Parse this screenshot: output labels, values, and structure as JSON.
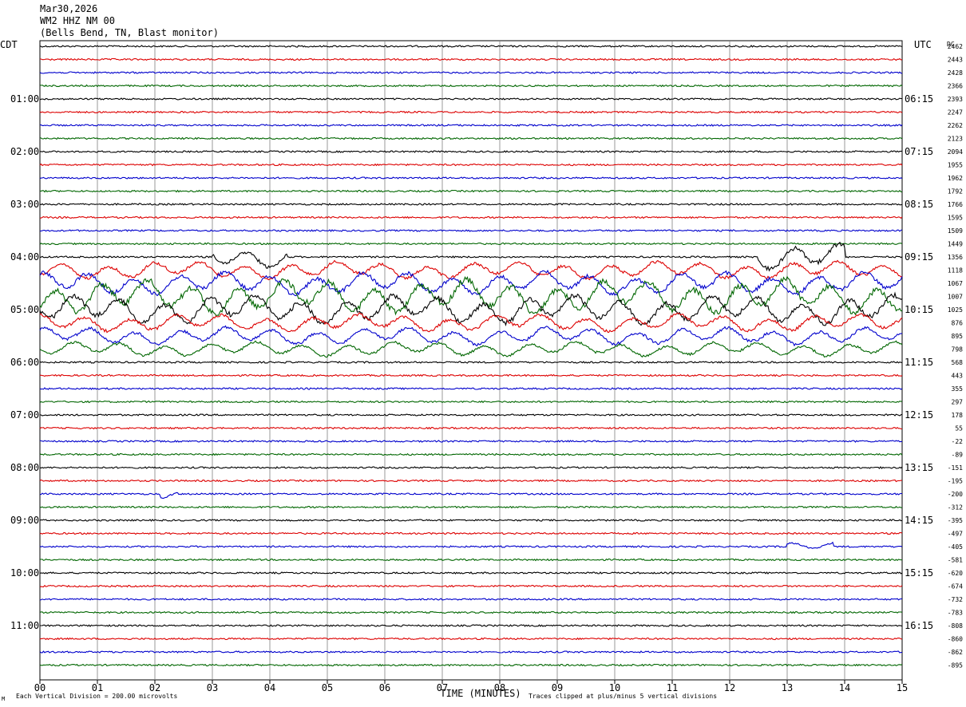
{
  "header": {
    "date": "Mar30,2026",
    "station": "WM2 HHZ NM 00",
    "location": "(Bells Bend, TN, Blast monitor)"
  },
  "axis": {
    "left_tz": "CDT",
    "right_tz": "UTC",
    "dc_label": "DC",
    "xlabel": "TIME (MINUTES)",
    "x_ticks": [
      "00",
      "01",
      "02",
      "03",
      "04",
      "05",
      "06",
      "07",
      "08",
      "09",
      "10",
      "11",
      "12",
      "13",
      "14",
      "15"
    ],
    "left_hours": [
      "01:00",
      "02:00",
      "03:00",
      "04:00",
      "05:00",
      "06:00",
      "07:00",
      "08:00",
      "09:00",
      "10:00",
      "11:00"
    ],
    "right_hours": [
      "06:15",
      "07:15",
      "08:15",
      "09:15",
      "10:15",
      "11:15",
      "12:15",
      "13:15",
      "14:15",
      "15:15",
      "16:15"
    ]
  },
  "footer": {
    "scale": "Each Vertical Division =  200.00 microvolts",
    "clip": "Traces clipped at plus/minus 5 vertical divisions",
    "corner_mark": "M"
  },
  "colors": [
    "#000000",
    "#dd0000",
    "#0000cc",
    "#006600"
  ],
  "chart_data": {
    "type": "line",
    "title": "Mar30,2026",
    "xlabel": "TIME (MINUTES)",
    "xlim": [
      0,
      15
    ],
    "minutes_per_line": 15,
    "lines": 48,
    "trace_color_cycle": [
      "black",
      "red",
      "blue",
      "green"
    ],
    "dc_offsets": [
      2462,
      2443,
      2428,
      2366,
      2393,
      2247,
      2262,
      2123,
      2094,
      1955,
      1962,
      1792,
      1766,
      1595,
      1509,
      1449,
      1356,
      1118,
      1067,
      1007,
      1025,
      876,
      895,
      798,
      568,
      443,
      355,
      297,
      178,
      55,
      -22,
      -89,
      -151,
      -195,
      -200,
      -312,
      -395,
      -497,
      -405,
      -581,
      -620,
      -674,
      -732,
      -783,
      -808,
      -860,
      -862,
      -895
    ],
    "activity": [
      {
        "line": 16,
        "from_min": 3.0,
        "to_min": 4.3,
        "level": 3.5
      },
      {
        "line": 16,
        "from_min": 12.5,
        "to_min": 14.0,
        "level": 4.5
      },
      {
        "line": 17,
        "from_min": 0,
        "to_min": 15,
        "level": 3
      },
      {
        "line": 18,
        "from_min": 0,
        "to_min": 15,
        "level": 4
      },
      {
        "line": 19,
        "from_min": 0,
        "to_min": 15,
        "level": 6
      },
      {
        "line": 20,
        "from_min": 0,
        "to_min": 15,
        "level": 5
      },
      {
        "line": 21,
        "from_min": 0,
        "to_min": 15,
        "level": 3
      },
      {
        "line": 22,
        "from_min": 0,
        "to_min": 15,
        "level": 3
      },
      {
        "line": 23,
        "from_min": 0,
        "to_min": 15,
        "level": 2.5
      },
      {
        "line": 34,
        "from_min": 2.1,
        "to_min": 2.4,
        "level": 1.5
      },
      {
        "line": 38,
        "from_min": 13.0,
        "to_min": 13.8,
        "level": 1.5
      }
    ]
  }
}
